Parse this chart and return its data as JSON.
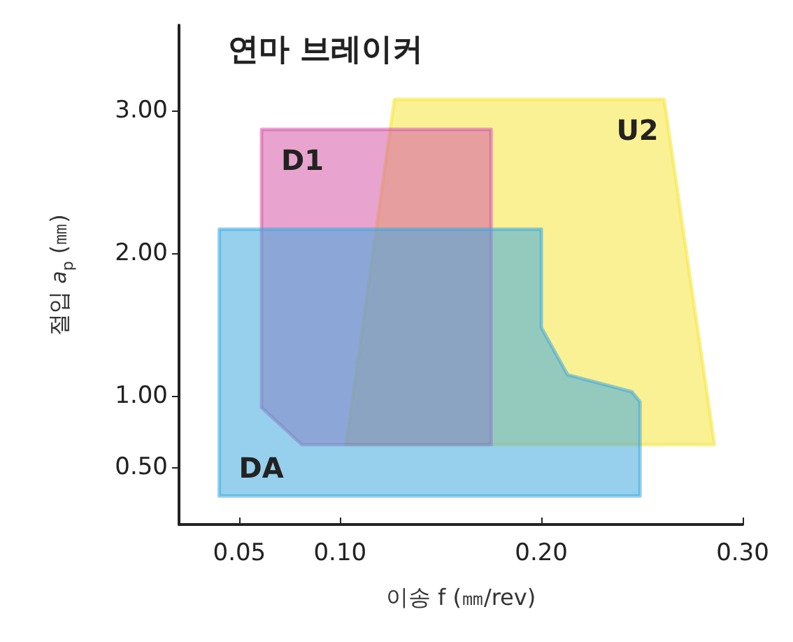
{
  "chart_data": {
    "type": "area",
    "title": "연마 브레이커",
    "xlabel": "이송 f (㎜/rev)",
    "ylabel": "절입 a$_{p}$ (㎜)",
    "xlim": [
      0.02,
      0.3
    ],
    "xticks": [
      0.05,
      {
        "value": 0.1,
        "label": "0.10"
      },
      {
        "value": 0.2,
        "label": "0.20"
      },
      {
        "value": 0.3,
        "label": "0.30"
      }
    ],
    "ylim": [
      0.1,
      3.6
    ],
    "yticks": [
      {
        "value": 0.5,
        "label": "0.50"
      },
      {
        "value": 1,
        "label": "1.00"
      },
      {
        "value": 2,
        "label": "2.00"
      },
      {
        "value": 3,
        "label": "3.00"
      }
    ],
    "grid": false,
    "legend": false,
    "series": [
      {
        "name": "U2",
        "color": "#f6e63c",
        "x": [
          0.127,
          0.261,
          0.286,
          0.103
        ],
        "values": [
          3.08,
          3.08,
          0.66,
          0.66
        ]
      },
      {
        "name": "D1",
        "color": "#d65aa8",
        "x": [
          0.061,
          0.175,
          0.175,
          0.081,
          0.061
        ],
        "values": [
          2.87,
          2.87,
          0.66,
          0.66,
          0.92
        ]
      },
      {
        "name": "DA",
        "color": "#3fa9df",
        "x": [
          0.04,
          0.2,
          0.2,
          0.213,
          0.245,
          0.249,
          0.249,
          0.04
        ],
        "values": [
          2.17,
          2.17,
          1.48,
          1.15,
          1.03,
          0.96,
          0.3,
          0.3
        ]
      }
    ]
  }
}
